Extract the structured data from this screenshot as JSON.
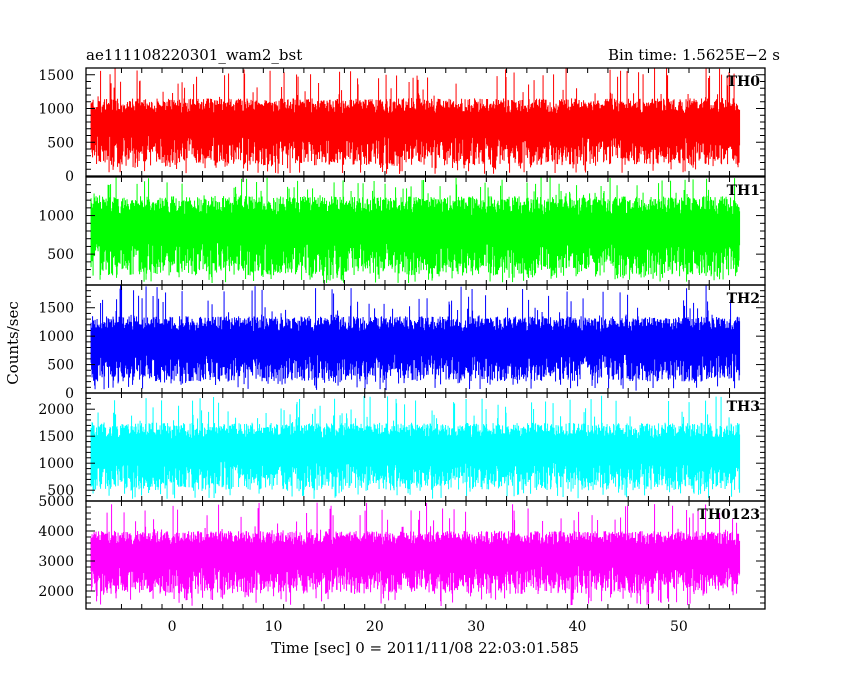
{
  "chart_data": {
    "type": "line",
    "title_left": "ae111108220301_wam2_bst",
    "title_right": "Bin time: 1.5625E−2 s",
    "xlabel": "Time [sec] 0 = 2011/11/08 22:03:01.585",
    "ylabel": "Counts/sec",
    "xlim": [
      -8.5,
      58.5
    ],
    "x_ticks": [
      0,
      10,
      20,
      30,
      40,
      50
    ],
    "x_start": -8.0,
    "x_end": 56.0,
    "grid": false,
    "legend": "none",
    "panels": [
      {
        "name": "TH0",
        "color": "#ff0000",
        "ylim": [
          0,
          1600
        ],
        "y_ticks": [
          0,
          500,
          1000,
          1500
        ],
        "mean": 650,
        "low_typical": 150,
        "high_typical": 1150,
        "high_max": 1600
      },
      {
        "name": "TH1",
        "color": "#00ff00",
        "ylim": [
          100,
          1500
        ],
        "y_ticks": [
          500,
          1000
        ],
        "mean": 700,
        "low_typical": 220,
        "high_typical": 1250,
        "high_max": 1500
      },
      {
        "name": "TH2",
        "color": "#0000ff",
        "ylim": [
          0,
          1900
        ],
        "y_ticks": [
          0,
          500,
          1000,
          1500
        ],
        "mean": 750,
        "low_typical": 200,
        "high_typical": 1350,
        "high_max": 1900
      },
      {
        "name": "TH3",
        "color": "#00ffff",
        "ylim": [
          300,
          2300
        ],
        "y_ticks": [
          500,
          1000,
          1500,
          2000
        ],
        "mean": 1100,
        "low_typical": 500,
        "high_typical": 1750,
        "high_max": 2250
      },
      {
        "name": "TH0123",
        "color": "#ff00ff",
        "ylim": [
          1400,
          5000
        ],
        "y_ticks": [
          2000,
          3000,
          4000,
          5000
        ],
        "mean": 2950,
        "low_typical": 1900,
        "high_typical": 4000,
        "high_max": 4950
      }
    ]
  }
}
